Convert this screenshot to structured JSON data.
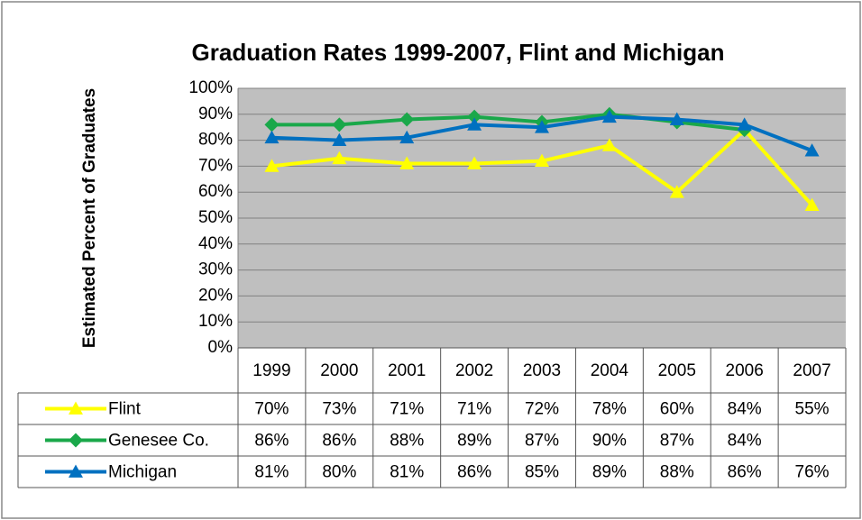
{
  "chart_data": {
    "type": "line",
    "title": "Graduation Rates 1999-2007, Flint and Michigan",
    "y_label": "Estimated Percent of Graduates",
    "categories": [
      "1999",
      "2000",
      "2001",
      "2002",
      "2003",
      "2004",
      "2005",
      "2006",
      "2007"
    ],
    "series": [
      {
        "name": "Flint",
        "color": "#ffff00",
        "marker": "triangle",
        "values": [
          70,
          73,
          71,
          71,
          72,
          78,
          60,
          84,
          55
        ],
        "value_labels": [
          "70%",
          "73%",
          "71%",
          "71%",
          "72%",
          "78%",
          "60%",
          "84%",
          "55%"
        ]
      },
      {
        "name": "Genesee Co.",
        "color": "#1aa84a",
        "marker": "diamond",
        "values": [
          86,
          86,
          88,
          89,
          87,
          90,
          87,
          84,
          null
        ],
        "value_labels": [
          "86%",
          "86%",
          "88%",
          "89%",
          "87%",
          "90%",
          "87%",
          "84%",
          null
        ]
      },
      {
        "name": "Michigan",
        "color": "#0070c0",
        "marker": "triangle",
        "values": [
          81,
          80,
          81,
          86,
          85,
          89,
          88,
          86,
          76
        ],
        "value_labels": [
          "81%",
          "80%",
          "81%",
          "86%",
          "85%",
          "89%",
          "88%",
          "86%",
          "76%"
        ]
      }
    ],
    "ylim": [
      0,
      100
    ],
    "yticks": [
      {
        "value": 0,
        "label": "0%"
      },
      {
        "value": 10,
        "label": "10%"
      },
      {
        "value": 20,
        "label": "20%"
      },
      {
        "value": 30,
        "label": "30%"
      },
      {
        "value": 40,
        "label": "40%"
      },
      {
        "value": 50,
        "label": "50%"
      },
      {
        "value": 60,
        "label": "60%"
      },
      {
        "value": 70,
        "label": "70%"
      },
      {
        "value": 80,
        "label": "80%"
      },
      {
        "value": 90,
        "label": "90%"
      },
      {
        "value": 100,
        "label": "100%"
      }
    ],
    "grid": true,
    "plot_background": "#bfbfbf"
  }
}
